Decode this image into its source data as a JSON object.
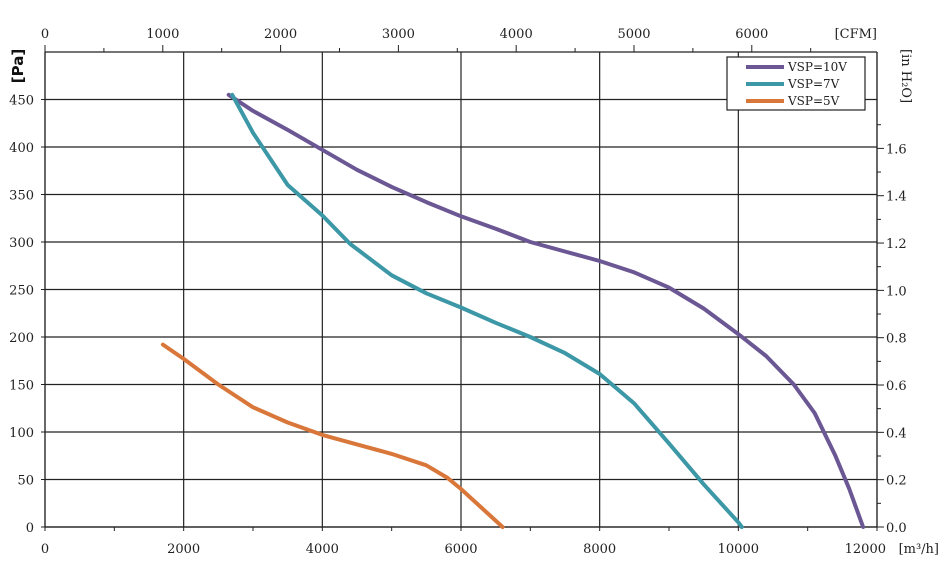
{
  "chart_data": {
    "type": "line",
    "title": "",
    "xlabel": "[m³/h]",
    "ylabel": "[Pa]",
    "x2label": "[CFM]",
    "y2label": "[in H₂O]",
    "xlim": [
      0,
      12000
    ],
    "ylim": [
      0,
      500
    ],
    "x_ticks": [
      0,
      2000,
      4000,
      6000,
      8000,
      10000,
      12000
    ],
    "y_ticks": [
      0,
      50,
      100,
      150,
      200,
      250,
      300,
      350,
      400,
      450
    ],
    "x2_ticks": [
      0,
      1000,
      2000,
      3000,
      4000,
      5000,
      6000
    ],
    "y2_ticks": [
      "0.0",
      "0.2",
      "0.4",
      "0.6",
      "0.8",
      "1.0",
      "1.2",
      "1.4",
      "1.6"
    ],
    "grid": true,
    "legend_position": "top-right",
    "colors": {
      "VSP=10V": "#6B5793",
      "VSP=7V": "#3C97A6",
      "VSP=5V": "#D9773A",
      "grid": "#222222"
    },
    "series": [
      {
        "name": "VSP=10V",
        "x": [
          2650,
          3000,
          3500,
          4000,
          4500,
          5000,
          5500,
          6000,
          6500,
          7000,
          7500,
          8000,
          8500,
          9000,
          9500,
          10000,
          10400,
          10800,
          11100,
          11400,
          11600,
          11800
        ],
        "y": [
          455,
          438,
          418,
          397,
          376,
          358,
          342,
          327,
          314,
          300,
          290,
          280,
          268,
          252,
          230,
          203,
          180,
          150,
          120,
          75,
          40,
          0
        ]
      },
      {
        "name": "VSP=7V",
        "x": [
          2700,
          3000,
          3500,
          4000,
          4400,
          5000,
          5500,
          6000,
          6500,
          7000,
          7500,
          8000,
          8500,
          9000,
          9500,
          10000,
          10050
        ],
        "y": [
          455,
          415,
          360,
          328,
          298,
          265,
          246,
          231,
          215,
          200,
          183,
          161,
          130,
          88,
          45,
          5,
          0
        ]
      },
      {
        "name": "VSP=5V",
        "x": [
          1700,
          2000,
          2500,
          3000,
          3500,
          4000,
          4500,
          5000,
          5500,
          5800,
          6000,
          6300,
          6600
        ],
        "y": [
          192,
          177,
          150,
          126,
          110,
          97,
          87,
          77,
          65,
          52,
          40,
          20,
          0
        ]
      }
    ]
  }
}
